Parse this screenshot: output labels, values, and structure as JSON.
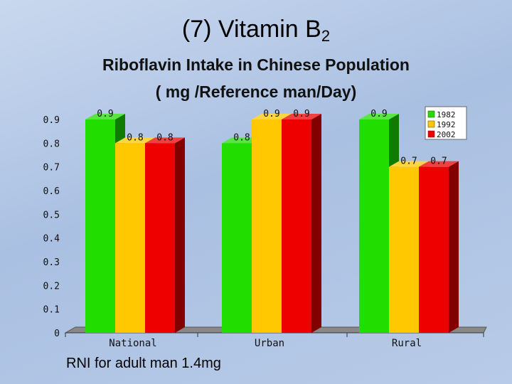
{
  "title": {
    "main": "(7) Vitamin B",
    "sub": "2"
  },
  "subtitle_line1": "Riboflavin  Intake in Chinese Population",
  "subtitle_line2": "( mg  /Reference man/Day)",
  "footnote": "RNI for adult man 1.4mg",
  "colors": {
    "1982": "#22dd00",
    "1992": "#ffc800",
    "2002": "#ee0000"
  },
  "chart_data": {
    "type": "bar",
    "categories": [
      "National",
      "Urban",
      "Rural"
    ],
    "series": [
      {
        "name": "1982",
        "values": [
          0.9,
          0.8,
          0.9
        ]
      },
      {
        "name": "1992",
        "values": [
          0.8,
          0.9,
          0.7
        ]
      },
      {
        "name": "2002",
        "values": [
          0.8,
          0.9,
          0.7
        ]
      }
    ],
    "data_labels": [
      [
        "0.9",
        "0.8",
        "0.8"
      ],
      [
        "0.8",
        "0.9",
        "0.9"
      ],
      [
        "0.9",
        "0.7",
        "0.7"
      ]
    ],
    "y_ticks": [
      "0",
      "0.1",
      "0.2",
      "0.3",
      "0.4",
      "0.5",
      "0.6",
      "0.7",
      "0.8",
      "0.9"
    ],
    "ylim": [
      0,
      0.9
    ],
    "legend_position": "top-right",
    "grid": false
  }
}
